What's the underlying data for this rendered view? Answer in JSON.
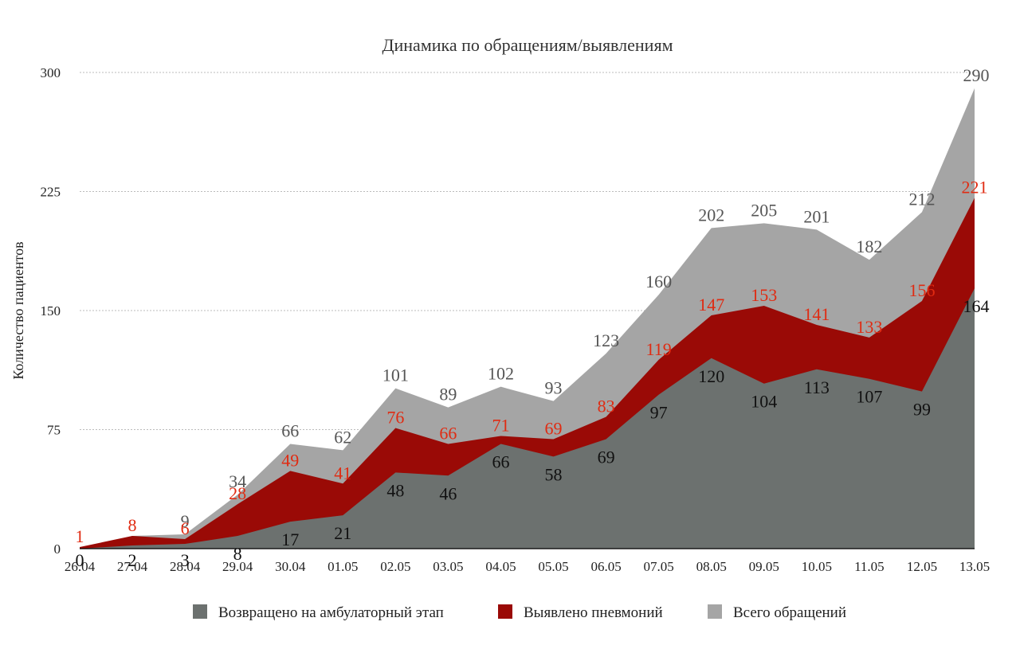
{
  "chart_data": {
    "type": "area",
    "title": "Динамика по обращениям/выявлениям",
    "xlabel": "",
    "ylabel": "Количество пациентов",
    "ylim": [
      0,
      300
    ],
    "yticks": [
      "0",
      "75",
      "150",
      "225",
      "300"
    ],
    "grid": true,
    "legend_position": "bottom",
    "categories": [
      "26.04",
      "27.04",
      "28.04",
      "29.04",
      "30.04",
      "01.05",
      "02.05",
      "03.05",
      "04.05",
      "05.05",
      "06.05",
      "07.05",
      "08.05",
      "09.05",
      "10.05",
      "11.05",
      "12.05",
      "13.05"
    ],
    "series": [
      {
        "name": "Всего обращений",
        "color": "#a5a5a5",
        "label_color": "#555555",
        "values": [
          0,
          8,
          9,
          34,
          66,
          62,
          101,
          89,
          102,
          93,
          123,
          160,
          202,
          205,
          201,
          182,
          212,
          290
        ],
        "labels": [
          "",
          "",
          "9",
          "34",
          "66",
          "62",
          "101",
          "89",
          "102",
          "93",
          "123",
          "160",
          "202",
          "205",
          "201",
          "182",
          "212",
          "290"
        ]
      },
      {
        "name": "Выявлено пневмоний",
        "color": "#9a0a06",
        "label_color": "#e02b12",
        "values": [
          1,
          8,
          6,
          28,
          49,
          41,
          76,
          66,
          71,
          69,
          83,
          119,
          147,
          153,
          141,
          133,
          156,
          221
        ],
        "labels": [
          "1",
          "8",
          "6",
          "28",
          "49",
          "41",
          "76",
          "66",
          "71",
          "69",
          "83",
          "119",
          "147",
          "153",
          "141",
          "133",
          "156",
          "221"
        ]
      },
      {
        "name": "Возвращено на амбулаторный этап",
        "color": "#6c716f",
        "label_color": "#111111",
        "values": [
          0,
          2,
          3,
          8,
          17,
          21,
          48,
          46,
          66,
          58,
          69,
          97,
          120,
          104,
          113,
          107,
          99,
          164
        ],
        "labels": [
          "0",
          "2",
          "3",
          "8",
          "17",
          "21",
          "48",
          "46",
          "66",
          "58",
          "69",
          "97",
          "120",
          "104",
          "113",
          "107",
          "99",
          "164"
        ]
      }
    ],
    "legend_order": [
      "Возвращено на амбулаторный этап",
      "Выявлено пневмоний",
      "Всего обращений"
    ],
    "grid_color": "#bbbbbb"
  }
}
